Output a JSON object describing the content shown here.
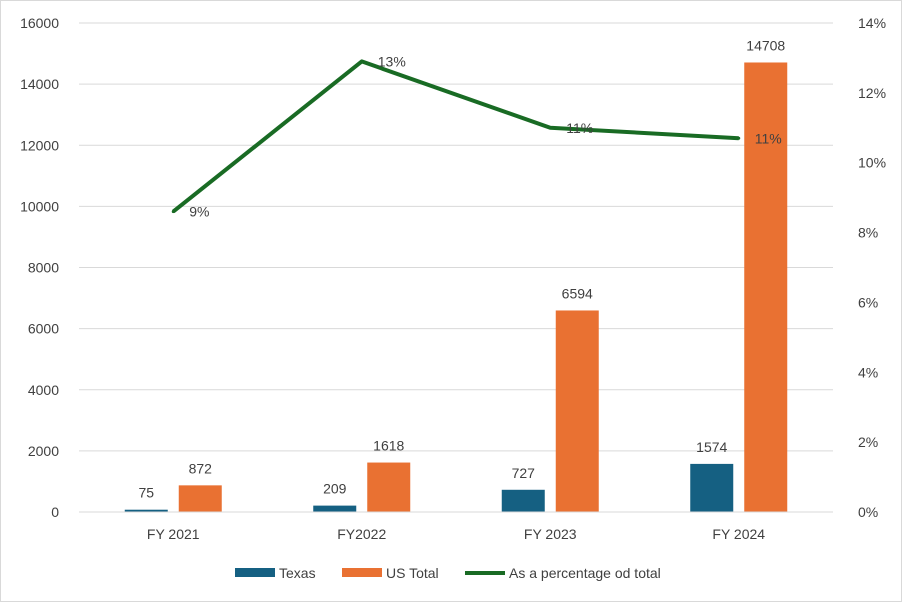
{
  "chart_data": {
    "type": "bar",
    "categories": [
      "FY 2021",
      "FY2022",
      "FY 2023",
      "FY 2024"
    ],
    "series": [
      {
        "name": "Texas",
        "type": "bar",
        "axis": "left",
        "values": [
          75,
          209,
          727,
          1574
        ],
        "color": "#156082"
      },
      {
        "name": "US Total",
        "type": "bar",
        "axis": "left",
        "values": [
          872,
          1618,
          6594,
          14708
        ],
        "color": "#E97132"
      },
      {
        "name": "As a percentage od total",
        "type": "line",
        "axis": "right",
        "values": [
          0.086,
          0.129,
          0.11,
          0.107
        ],
        "labels": [
          "9%",
          "13%",
          "11%",
          "11%"
        ],
        "color": "#196B24"
      }
    ],
    "y_left": {
      "range": [
        0,
        16000
      ],
      "ticks": [
        "0",
        "2000",
        "4000",
        "6000",
        "8000",
        "10000",
        "12000",
        "14000",
        "16000"
      ]
    },
    "y_right": {
      "range": [
        0,
        0.14
      ],
      "ticks": [
        "0%",
        "2%",
        "4%",
        "6%",
        "8%",
        "10%",
        "12%",
        "14%"
      ]
    },
    "grid": true,
    "legend_position": "bottom"
  }
}
